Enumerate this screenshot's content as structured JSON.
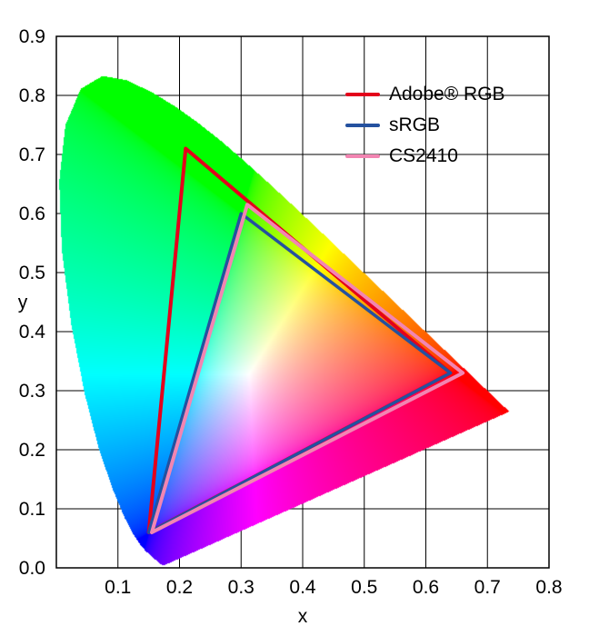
{
  "chart_data": {
    "type": "line",
    "subtype": "cie-1931-chromaticity-gamut-comparison",
    "title": "",
    "xlabel": "x",
    "ylabel": "y",
    "xlim": [
      0.0,
      0.8
    ],
    "ylim": [
      0.0,
      0.9
    ],
    "x_ticks": [
      "0.1",
      "0.2",
      "0.3",
      "0.4",
      "0.5",
      "0.6",
      "0.7",
      "0.8"
    ],
    "y_ticks": [
      "0.0",
      "0.1",
      "0.2",
      "0.3",
      "0.4",
      "0.5",
      "0.6",
      "0.7",
      "0.8",
      "0.9"
    ],
    "grid": true,
    "legend_position": "top-right",
    "series": [
      {
        "name": "Adobe® RGB",
        "color": "#e3001b",
        "line_width": 4,
        "points": [
          [
            0.21,
            0.71
          ],
          [
            0.64,
            0.33
          ],
          [
            0.15,
            0.06
          ]
        ]
      },
      {
        "name": "sRGB",
        "color": "#24519f",
        "line_width": 3.5,
        "points": [
          [
            0.3,
            0.6
          ],
          [
            0.64,
            0.33
          ],
          [
            0.15,
            0.06
          ]
        ]
      },
      {
        "name": "CS2410",
        "color": "#f285b2",
        "line_width": 4,
        "points": [
          [
            0.31,
            0.615
          ],
          [
            0.66,
            0.33
          ],
          [
            0.155,
            0.06
          ]
        ]
      }
    ],
    "background": {
      "name": "CIE 1931 chromaticity diagram horseshoe",
      "spectral_locus": [
        [
          0.1741,
          0.005
        ],
        [
          0.1738,
          0.0049
        ],
        [
          0.1733,
          0.0048
        ],
        [
          0.1726,
          0.0048
        ],
        [
          0.1714,
          0.0051
        ],
        [
          0.1689,
          0.0069
        ],
        [
          0.1644,
          0.0109
        ],
        [
          0.1566,
          0.0177
        ],
        [
          0.144,
          0.0297
        ],
        [
          0.1355,
          0.0399
        ],
        [
          0.1241,
          0.0578
        ],
        [
          0.1096,
          0.0868
        ],
        [
          0.0913,
          0.1327
        ],
        [
          0.0687,
          0.2007
        ],
        [
          0.0454,
          0.295
        ],
        [
          0.0235,
          0.4127
        ],
        [
          0.0082,
          0.5384
        ],
        [
          0.0039,
          0.6548
        ],
        [
          0.0139,
          0.7502
        ],
        [
          0.0389,
          0.812
        ],
        [
          0.0743,
          0.8338
        ],
        [
          0.1142,
          0.8262
        ],
        [
          0.1547,
          0.8059
        ],
        [
          0.1929,
          0.7816
        ],
        [
          0.2296,
          0.7543
        ],
        [
          0.2658,
          0.7243
        ],
        [
          0.3016,
          0.6923
        ],
        [
          0.3373,
          0.6588
        ],
        [
          0.3731,
          0.6245
        ],
        [
          0.4087,
          0.5896
        ],
        [
          0.4441,
          0.5547
        ],
        [
          0.4784,
          0.5203
        ],
        [
          0.5125,
          0.4866
        ],
        [
          0.5448,
          0.4544
        ],
        [
          0.5752,
          0.4242
        ],
        [
          0.6029,
          0.3965
        ],
        [
          0.627,
          0.3725
        ],
        [
          0.6482,
          0.3514
        ],
        [
          0.6658,
          0.334
        ],
        [
          0.6801,
          0.3197
        ],
        [
          0.6915,
          0.3083
        ],
        [
          0.7006,
          0.2993
        ],
        [
          0.7079,
          0.292
        ],
        [
          0.714,
          0.2859
        ],
        [
          0.719,
          0.2809
        ],
        [
          0.723,
          0.277
        ],
        [
          0.726,
          0.274
        ],
        [
          0.73,
          0.27
        ],
        [
          0.732,
          0.268
        ],
        [
          0.7334,
          0.2666
        ],
        [
          0.7347,
          0.2653
        ]
      ]
    }
  }
}
